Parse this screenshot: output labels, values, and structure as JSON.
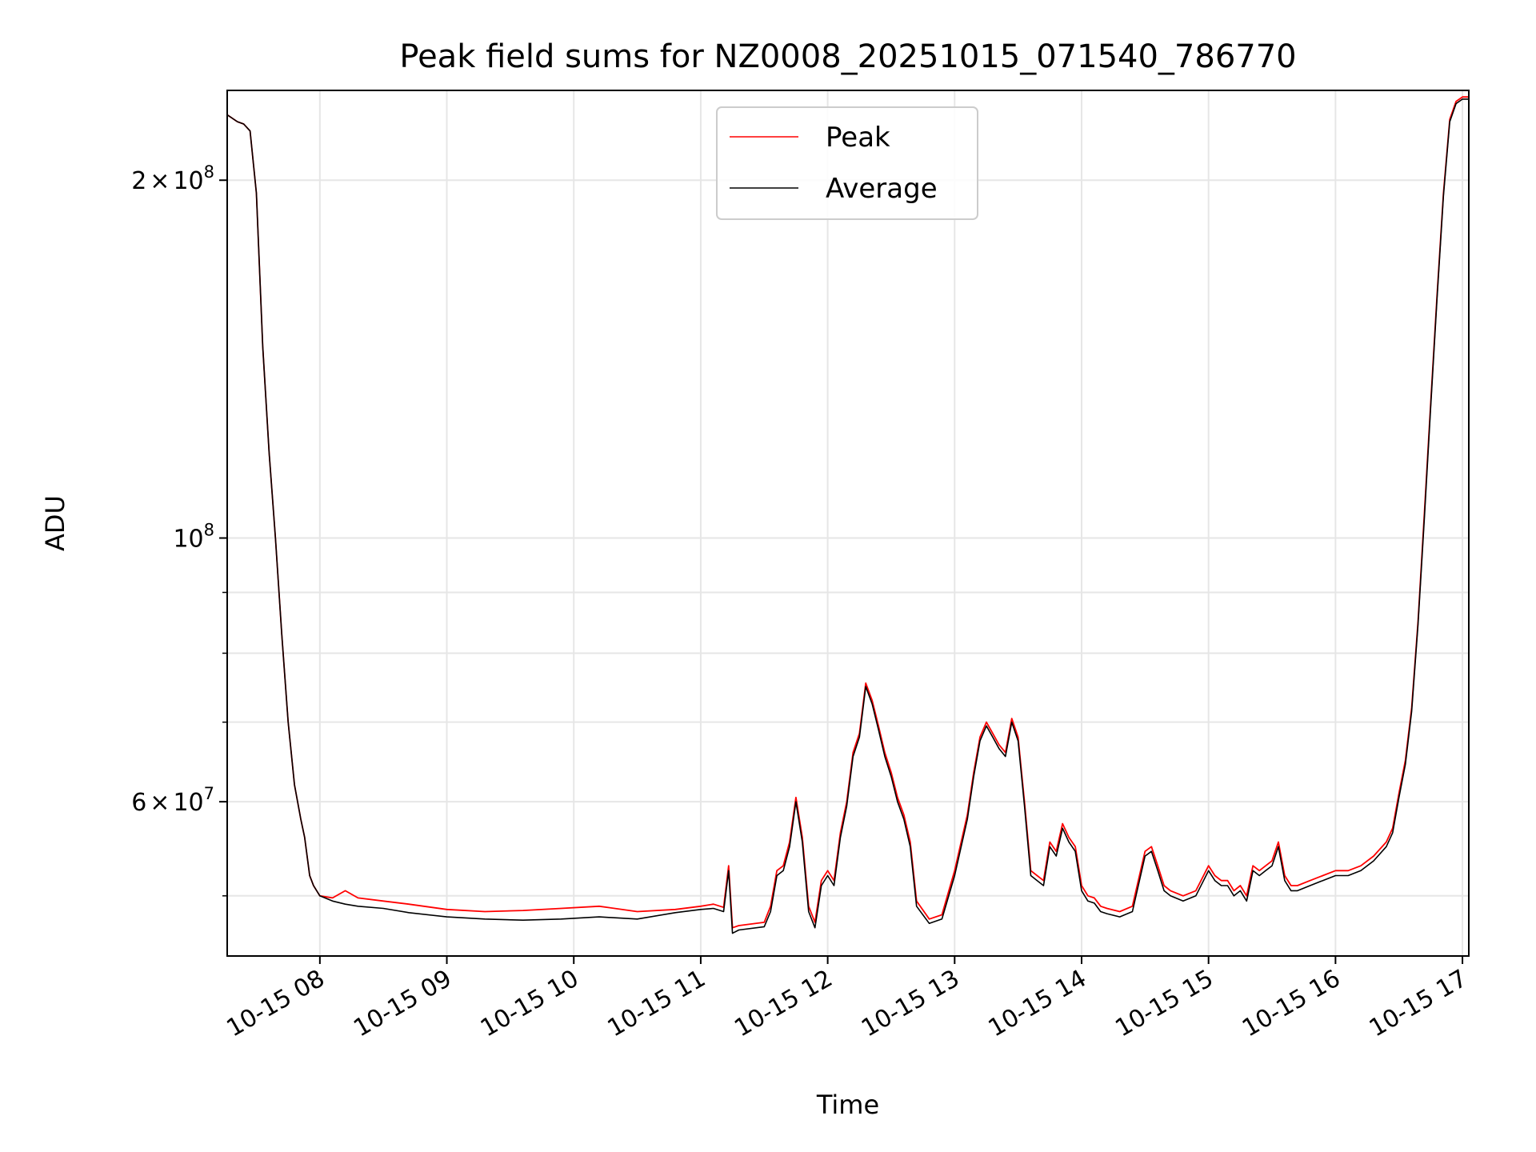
{
  "chart_data": {
    "type": "line",
    "title": "Peak field sums for NZ0008_20251015_071540_786770",
    "xlabel": "Time",
    "ylabel": "ADU",
    "yscale": "log",
    "grid": true,
    "legend_position": "upper-center",
    "xlim": [
      7.27,
      17.05
    ],
    "ylim": [
      44500000.0,
      238000000.0
    ],
    "x_ticks": [
      {
        "value": 8,
        "label": "10-15 08"
      },
      {
        "value": 9,
        "label": "10-15 09"
      },
      {
        "value": 10,
        "label": "10-15 10"
      },
      {
        "value": 11,
        "label": "10-15 11"
      },
      {
        "value": 12,
        "label": "10-15 12"
      },
      {
        "value": 13,
        "label": "10-15 13"
      },
      {
        "value": 14,
        "label": "10-15 14"
      },
      {
        "value": 15,
        "label": "10-15 15"
      },
      {
        "value": 16,
        "label": "10-15 16"
      },
      {
        "value": 17,
        "label": "10-15 17"
      }
    ],
    "y_major_ticks": [
      {
        "value": 60000000,
        "base": "6",
        "exp": "7"
      },
      {
        "value": 100000000,
        "base": "",
        "exp": "8"
      },
      {
        "value": 200000000,
        "base": "2",
        "exp": "8"
      }
    ],
    "y_minor_ticks": [
      50000000,
      70000000,
      80000000,
      90000000
    ],
    "times_sign": "×",
    "ten": "10",
    "series": [
      {
        "name": "Peak",
        "color": "#ff0000",
        "x": [
          7.27,
          7.35,
          7.4,
          7.45,
          7.5,
          7.55,
          7.6,
          7.65,
          7.7,
          7.75,
          7.8,
          7.85,
          7.88,
          7.92,
          7.95,
          8.0,
          8.1,
          8.2,
          8.3,
          8.5,
          8.7,
          9.0,
          9.3,
          9.6,
          9.9,
          10.2,
          10.5,
          10.8,
          11.0,
          11.1,
          11.18,
          11.22,
          11.25,
          11.3,
          11.5,
          11.55,
          11.6,
          11.65,
          11.7,
          11.75,
          11.8,
          11.85,
          11.9,
          11.95,
          12.0,
          12.05,
          12.1,
          12.15,
          12.2,
          12.25,
          12.3,
          12.35,
          12.4,
          12.45,
          12.5,
          12.55,
          12.6,
          12.65,
          12.7,
          12.8,
          12.9,
          13.0,
          13.1,
          13.15,
          13.2,
          13.25,
          13.3,
          13.35,
          13.4,
          13.45,
          13.5,
          13.55,
          13.6,
          13.65,
          13.7,
          13.75,
          13.8,
          13.85,
          13.9,
          13.95,
          14.0,
          14.05,
          14.1,
          14.15,
          14.2,
          14.3,
          14.4,
          14.5,
          14.55,
          14.6,
          14.65,
          14.7,
          14.8,
          14.9,
          15.0,
          15.05,
          15.1,
          15.15,
          15.2,
          15.25,
          15.3,
          15.35,
          15.4,
          15.45,
          15.5,
          15.55,
          15.6,
          15.65,
          15.7,
          15.8,
          15.9,
          16.0,
          16.1,
          16.2,
          16.3,
          16.4,
          16.45,
          16.5,
          16.55,
          16.6,
          16.65,
          16.7,
          16.75,
          16.8,
          16.85,
          16.9,
          16.95,
          17.0,
          17.05
        ],
        "y": [
          227000000,
          224000000,
          223000000,
          220000000,
          195000000,
          145000000,
          118000000,
          100000000,
          83000000,
          70000000,
          62000000,
          58000000,
          56000000,
          52000000,
          51000000,
          50000000,
          49800000,
          50500000,
          49800000,
          49500000,
          49200000,
          48700000,
          48500000,
          48600000,
          48800000,
          49000000,
          48500000,
          48700000,
          49000000,
          49200000,
          48900000,
          53000000,
          47000000,
          47200000,
          47500000,
          49000000,
          52500000,
          53000000,
          55500000,
          60500000,
          56000000,
          49000000,
          47500000,
          51500000,
          52500000,
          51500000,
          56500000,
          60000000,
          66000000,
          68500000,
          75500000,
          73000000,
          69500000,
          66000000,
          63500000,
          60500000,
          58500000,
          55500000,
          49500000,
          47800000,
          48200000,
          52500000,
          58500000,
          63500000,
          68000000,
          70000000,
          68500000,
          67000000,
          66000000,
          70500000,
          68000000,
          60000000,
          52500000,
          52000000,
          51500000,
          55500000,
          54500000,
          57500000,
          56000000,
          55000000,
          51000000,
          50000000,
          49800000,
          49000000,
          48800000,
          48500000,
          49000000,
          54500000,
          55000000,
          53000000,
          51000000,
          50500000,
          50000000,
          50500000,
          53000000,
          52000000,
          51500000,
          51500000,
          50500000,
          51000000,
          50000000,
          53000000,
          52500000,
          53000000,
          53500000,
          55500000,
          52000000,
          51000000,
          51000000,
          51500000,
          52000000,
          52500000,
          52500000,
          53000000,
          54000000,
          55500000,
          57000000,
          61000000,
          65000000,
          72000000,
          85000000,
          105000000,
          130000000,
          160000000,
          195000000,
          225000000,
          233000000,
          235000000,
          235000000
        ]
      },
      {
        "name": "Average",
        "color": "#000000",
        "x": [
          7.27,
          7.35,
          7.4,
          7.45,
          7.5,
          7.55,
          7.6,
          7.65,
          7.7,
          7.75,
          7.8,
          7.85,
          7.88,
          7.92,
          7.95,
          8.0,
          8.1,
          8.2,
          8.3,
          8.5,
          8.7,
          9.0,
          9.3,
          9.6,
          9.9,
          10.2,
          10.5,
          10.8,
          11.0,
          11.1,
          11.18,
          11.22,
          11.25,
          11.3,
          11.5,
          11.55,
          11.6,
          11.65,
          11.7,
          11.75,
          11.8,
          11.85,
          11.9,
          11.95,
          12.0,
          12.05,
          12.1,
          12.15,
          12.2,
          12.25,
          12.3,
          12.35,
          12.4,
          12.45,
          12.5,
          12.55,
          12.6,
          12.65,
          12.7,
          12.8,
          12.9,
          13.0,
          13.1,
          13.15,
          13.2,
          13.25,
          13.3,
          13.35,
          13.4,
          13.45,
          13.5,
          13.55,
          13.6,
          13.65,
          13.7,
          13.75,
          13.8,
          13.85,
          13.9,
          13.95,
          14.0,
          14.05,
          14.1,
          14.15,
          14.2,
          14.3,
          14.4,
          14.5,
          14.55,
          14.6,
          14.65,
          14.7,
          14.8,
          14.9,
          15.0,
          15.05,
          15.1,
          15.15,
          15.2,
          15.25,
          15.3,
          15.35,
          15.4,
          15.45,
          15.5,
          15.55,
          15.6,
          15.65,
          15.7,
          15.8,
          15.9,
          16.0,
          16.1,
          16.2,
          16.3,
          16.4,
          16.45,
          16.5,
          16.55,
          16.6,
          16.65,
          16.7,
          16.75,
          16.8,
          16.85,
          16.9,
          16.95,
          17.0,
          17.05
        ],
        "y": [
          227000000,
          224000000,
          223000000,
          220000000,
          195000000,
          145000000,
          118000000,
          100000000,
          83000000,
          70000000,
          62000000,
          58000000,
          56000000,
          52000000,
          51000000,
          50000000,
          49500000,
          49200000,
          49000000,
          48800000,
          48400000,
          48000000,
          47800000,
          47700000,
          47800000,
          48000000,
          47800000,
          48400000,
          48700000,
          48800000,
          48500000,
          52500000,
          46500000,
          46800000,
          47100000,
          48500000,
          52000000,
          52500000,
          55000000,
          60000000,
          55500000,
          48500000,
          47000000,
          51000000,
          52000000,
          51000000,
          56000000,
          59500000,
          65500000,
          68000000,
          75000000,
          72500000,
          69000000,
          65500000,
          63000000,
          60000000,
          58000000,
          55000000,
          49000000,
          47400000,
          47800000,
          52000000,
          58000000,
          63000000,
          67500000,
          69500000,
          68000000,
          66500000,
          65500000,
          70000000,
          67500000,
          59500000,
          52000000,
          51500000,
          51000000,
          55000000,
          54000000,
          57000000,
          55500000,
          54500000,
          50500000,
          49500000,
          49300000,
          48500000,
          48300000,
          48000000,
          48500000,
          54000000,
          54500000,
          52500000,
          50500000,
          50000000,
          49500000,
          50000000,
          52500000,
          51500000,
          51000000,
          51000000,
          50000000,
          50500000,
          49500000,
          52500000,
          52000000,
          52500000,
          53000000,
          55000000,
          51500000,
          50500000,
          50500000,
          51000000,
          51500000,
          52000000,
          52000000,
          52500000,
          53500000,
          55000000,
          56500000,
          60500000,
          64500000,
          71500000,
          84500000,
          104000000,
          129000000,
          159000000,
          194000000,
          224000000,
          232000000,
          234000000,
          234000000
        ]
      }
    ]
  }
}
